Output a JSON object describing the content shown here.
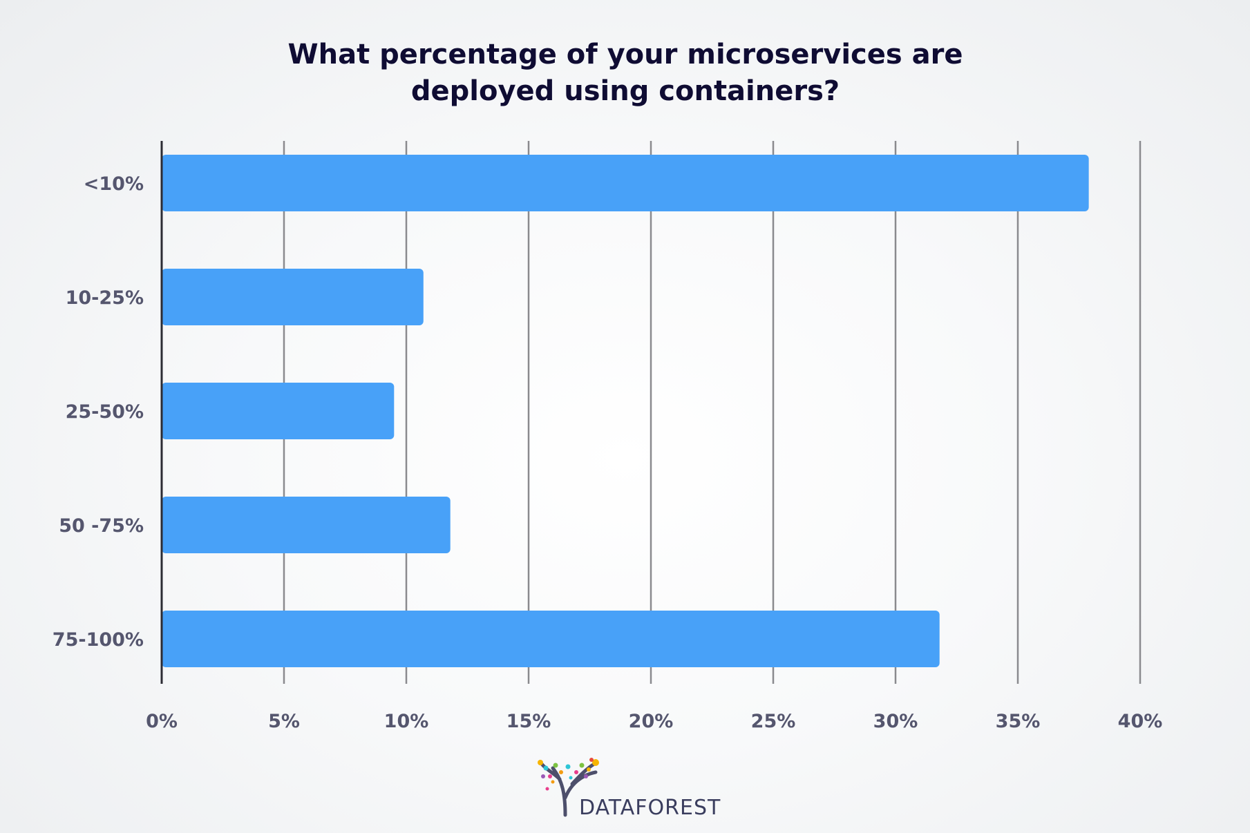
{
  "chart_data": {
    "type": "bar",
    "orientation": "horizontal",
    "title_lines": [
      "What percentage of your microservices are",
      "deployed using containers?"
    ],
    "categories": [
      "<10%",
      "10-25%",
      "25-50%",
      "50 -75%",
      "75-100%"
    ],
    "values": [
      37.9,
      10.7,
      9.5,
      11.8,
      31.8
    ],
    "xlim": [
      0,
      40
    ],
    "xticks": [
      "0%",
      "5%",
      "10%",
      "15%",
      "20%",
      "25%",
      "30%",
      "35%",
      "40%"
    ],
    "xtick_values": [
      0,
      5,
      10,
      15,
      20,
      25,
      30,
      35,
      40
    ],
    "grid": "vertical",
    "bar_color": "#48a1f8",
    "grid_color": "#8a8a8e",
    "axis_color": "#2b2b33"
  },
  "brand": {
    "name": "DATAFOREST",
    "logo_icon": "tree-icon"
  }
}
